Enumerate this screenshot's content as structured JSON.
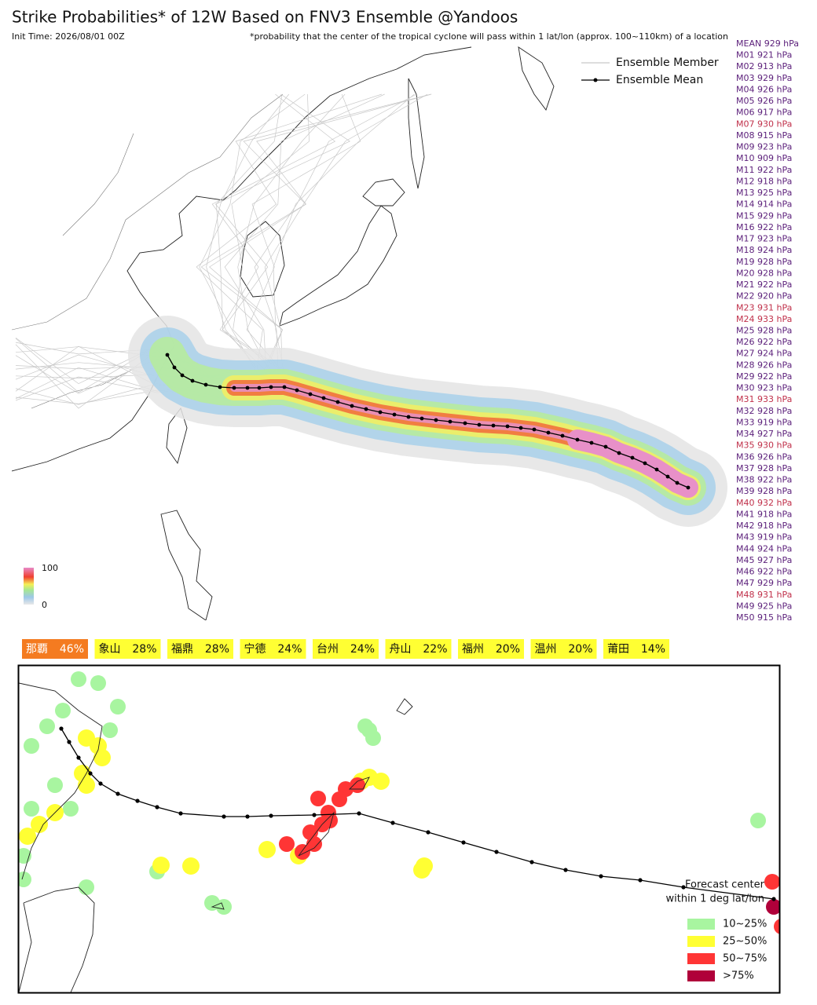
{
  "header": {
    "title": "Strike Probabilities* of 12W Based on FNV3 Ensemble  @Yandoos",
    "init_time": "Init Time: 2026/08/01 00Z",
    "footnote": "*probability that the center of the tropical cyclone will pass within 1 lat/lon (approx. 100~110km) of a location"
  },
  "legend": {
    "member": "Ensemble Member",
    "mean": "Ensemble Mean"
  },
  "colorbar": {
    "max": "100",
    "min": "0"
  },
  "members": [
    {
      "label": "MEAN 929 hPa",
      "color": "#5b1f7a"
    },
    {
      "label": "M01 921 hPa",
      "color": "#5b1f7a"
    },
    {
      "label": "M02 913 hPa",
      "color": "#5b1f7a"
    },
    {
      "label": "M03 929 hPa",
      "color": "#5b1f7a"
    },
    {
      "label": "M04 926 hPa",
      "color": "#5b1f7a"
    },
    {
      "label": "M05 926 hPa",
      "color": "#5b1f7a"
    },
    {
      "label": "M06 917 hPa",
      "color": "#5b1f7a"
    },
    {
      "label": "M07 930 hPa",
      "color": "#c0304a"
    },
    {
      "label": "M08 915 hPa",
      "color": "#5b1f7a"
    },
    {
      "label": "M09 923 hPa",
      "color": "#5b1f7a"
    },
    {
      "label": "M10 909 hPa",
      "color": "#5b1f7a"
    },
    {
      "label": "M11 922 hPa",
      "color": "#5b1f7a"
    },
    {
      "label": "M12 918 hPa",
      "color": "#5b1f7a"
    },
    {
      "label": "M13 925 hPa",
      "color": "#5b1f7a"
    },
    {
      "label": "M14 914 hPa",
      "color": "#5b1f7a"
    },
    {
      "label": "M15 929 hPa",
      "color": "#5b1f7a"
    },
    {
      "label": "M16 922 hPa",
      "color": "#5b1f7a"
    },
    {
      "label": "M17 923 hPa",
      "color": "#5b1f7a"
    },
    {
      "label": "M18 924 hPa",
      "color": "#5b1f7a"
    },
    {
      "label": "M19 928 hPa",
      "color": "#5b1f7a"
    },
    {
      "label": "M20 928 hPa",
      "color": "#5b1f7a"
    },
    {
      "label": "M21 922 hPa",
      "color": "#5b1f7a"
    },
    {
      "label": "M22 920 hPa",
      "color": "#5b1f7a"
    },
    {
      "label": "M23 931 hPa",
      "color": "#c0304a"
    },
    {
      "label": "M24 933 hPa",
      "color": "#c0304a"
    },
    {
      "label": "M25 928 hPa",
      "color": "#5b1f7a"
    },
    {
      "label": "M26 922 hPa",
      "color": "#5b1f7a"
    },
    {
      "label": "M27 924 hPa",
      "color": "#5b1f7a"
    },
    {
      "label": "M28 926 hPa",
      "color": "#5b1f7a"
    },
    {
      "label": "M29 922 hPa",
      "color": "#5b1f7a"
    },
    {
      "label": "M30 923 hPa",
      "color": "#5b1f7a"
    },
    {
      "label": "M31 933 hPa",
      "color": "#c0304a"
    },
    {
      "label": "M32 928 hPa",
      "color": "#5b1f7a"
    },
    {
      "label": "M33 919 hPa",
      "color": "#5b1f7a"
    },
    {
      "label": "M34 927 hPa",
      "color": "#5b1f7a"
    },
    {
      "label": "M35 930 hPa",
      "color": "#c0304a"
    },
    {
      "label": "M36 926 hPa",
      "color": "#5b1f7a"
    },
    {
      "label": "M37 928 hPa",
      "color": "#5b1f7a"
    },
    {
      "label": "M38 922 hPa",
      "color": "#5b1f7a"
    },
    {
      "label": "M39 928 hPa",
      "color": "#5b1f7a"
    },
    {
      "label": "M40 932 hPa",
      "color": "#c0304a"
    },
    {
      "label": "M41 918 hPa",
      "color": "#5b1f7a"
    },
    {
      "label": "M42 918 hPa",
      "color": "#5b1f7a"
    },
    {
      "label": "M43 919 hPa",
      "color": "#5b1f7a"
    },
    {
      "label": "M44 924 hPa",
      "color": "#5b1f7a"
    },
    {
      "label": "M45 927 hPa",
      "color": "#5b1f7a"
    },
    {
      "label": "M46 922 hPa",
      "color": "#5b1f7a"
    },
    {
      "label": "M47 929 hPa",
      "color": "#5b1f7a"
    },
    {
      "label": "M48 931 hPa",
      "color": "#c0304a"
    },
    {
      "label": "M49 925 hPa",
      "color": "#5b1f7a"
    },
    {
      "label": "M50 915 hPa",
      "color": "#5b1f7a"
    }
  ],
  "places": [
    {
      "name": "那覇",
      "value": "46%",
      "color": "#f47b20"
    },
    {
      "name": "象山",
      "value": "28%",
      "color": "#ffff33"
    },
    {
      "name": "福鼎",
      "value": "28%",
      "color": "#ffff33"
    },
    {
      "name": "宁德",
      "value": "24%",
      "color": "#ffff33"
    },
    {
      "name": "台州",
      "value": "24%",
      "color": "#ffff33"
    },
    {
      "name": "舟山",
      "value": "22%",
      "color": "#ffff33"
    },
    {
      "name": "福州",
      "value": "20%",
      "color": "#ffff33"
    },
    {
      "name": "温州",
      "value": "20%",
      "color": "#ffff33"
    },
    {
      "name": "莆田",
      "value": "14%",
      "color": "#ffff33"
    }
  ],
  "zoom_map": {
    "note": [
      "Forecast center",
      "within 1 deg lat/lon"
    ],
    "levels": [
      {
        "label": "10~25%",
        "color": "#a8f5a0"
      },
      {
        "label": "25~50%",
        "color": "#ffff33"
      },
      {
        "label": "50~75%",
        "color": "#ff3535"
      },
      {
        "label": ">75%",
        "color": "#b0003a"
      }
    ]
  }
}
